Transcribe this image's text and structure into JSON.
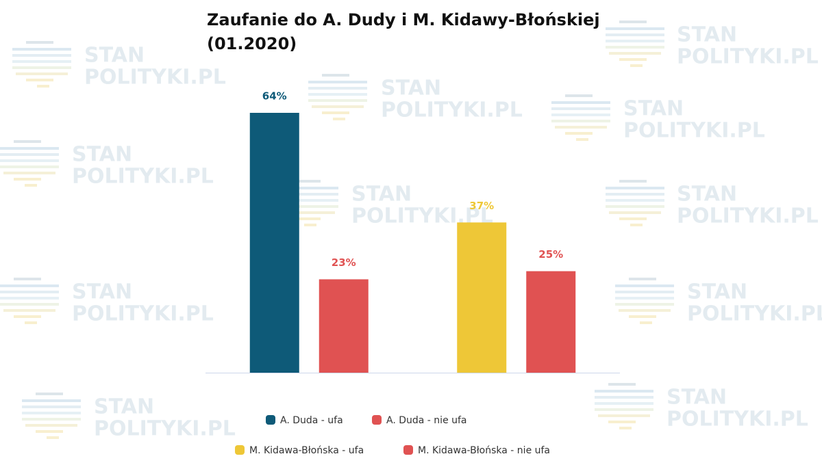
{
  "watermark": {
    "line1": "STAN",
    "line2": "POLITYKI.PL"
  },
  "chart_data": {
    "type": "bar",
    "title": "Zaufanie do A. Dudy i M. Kidawy-Błońskiej (01.2020)",
    "categories": [
      null,
      null
    ],
    "series": [
      {
        "name": "A. Duda - ufa",
        "color": "#0e5a78",
        "values": [
          64,
          null
        ],
        "value_labels": [
          "64%",
          null
        ]
      },
      {
        "name": "A. Duda - nie ufa",
        "color": "#e05252",
        "values": [
          23,
          null
        ],
        "value_labels": [
          "23%",
          null
        ]
      },
      {
        "name": "M. Kidawa-Błońska - ufa",
        "color": "#eec737",
        "values": [
          null,
          37
        ],
        "value_labels": [
          null,
          "37%"
        ]
      },
      {
        "name": "M. Kidawa-Błońska - nie ufa",
        "color": "#e05252",
        "values": [
          null,
          25
        ],
        "value_labels": [
          null,
          "25%"
        ]
      }
    ]
  }
}
